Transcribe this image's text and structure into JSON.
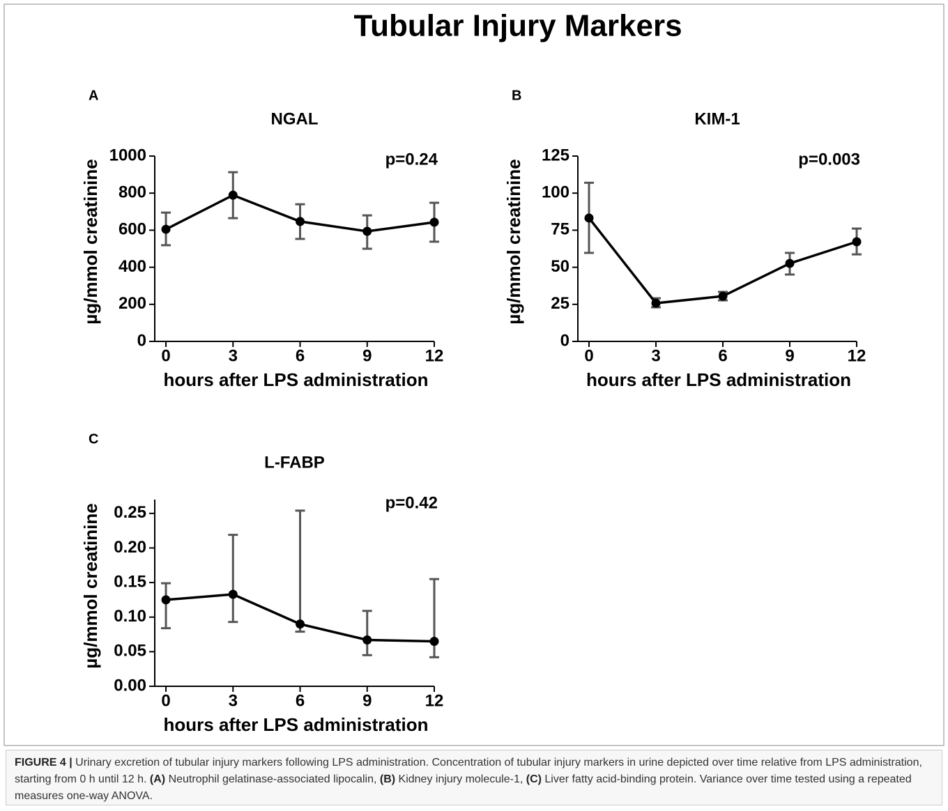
{
  "title": "Tubular Injury Markers",
  "chart_data": [
    {
      "type": "line",
      "panel": "A",
      "title": "NGAL",
      "annotation": "p=0.24",
      "xlabel": "hours after LPS administration",
      "ylabel": "µg/mmol creatinine",
      "x": [
        0,
        3,
        6,
        9,
        12
      ],
      "values": [
        605,
        789,
        647,
        594,
        643
      ],
      "error_low": [
        519,
        665,
        553,
        500,
        538
      ],
      "error_high": [
        695,
        913,
        740,
        680,
        748
      ],
      "color": "#000000",
      "error_color": "#555555",
      "xlim": [
        -0.5,
        12
      ],
      "xticks": [
        0,
        3,
        6,
        9,
        12
      ],
      "ylim": [
        0,
        1000
      ],
      "yticks": [
        0,
        200,
        400,
        600,
        800,
        1000
      ]
    },
    {
      "type": "line",
      "panel": "B",
      "title": "KIM-1",
      "annotation": "p=0.003",
      "xlabel": "hours after LPS administration",
      "ylabel": "µg/mmol creatinine",
      "x": [
        0,
        3,
        6,
        9,
        12
      ],
      "values": [
        83.2,
        25.8,
        30.5,
        52.6,
        67.2
      ],
      "error_low": [
        59.7,
        23.0,
        27.7,
        45.1,
        58.7
      ],
      "error_high": [
        107,
        29.1,
        33.4,
        59.7,
        76.1
      ],
      "color": "#000000",
      "error_color": "#555555",
      "xlim": [
        -0.5,
        12
      ],
      "xticks": [
        0,
        3,
        6,
        9,
        12
      ],
      "ylim": [
        0,
        125
      ],
      "yticks": [
        0,
        25,
        50,
        75,
        100,
        125
      ]
    },
    {
      "type": "line",
      "panel": "C",
      "title": "L-FABP",
      "annotation": "p=0.42",
      "xlabel": "hours after LPS administration",
      "ylabel": "µg/mmol creatinine",
      "x": [
        0,
        3,
        6,
        9,
        12
      ],
      "values": [
        0.125,
        0.133,
        0.09,
        0.067,
        0.065
      ],
      "error_low": [
        0.084,
        0.093,
        0.079,
        0.045,
        0.042
      ],
      "error_high": [
        0.149,
        0.219,
        0.254,
        0.109,
        0.155
      ],
      "color": "#000000",
      "error_color": "#555555",
      "xlim": [
        -0.5,
        12
      ],
      "xticks": [
        0,
        3,
        6,
        9,
        12
      ],
      "ylim": [
        0,
        0.27
      ],
      "yticks": [
        {
          "value": 0,
          "label": "0.00"
        },
        0.05,
        {
          "value": 0.1,
          "label": "0.10"
        },
        0.15,
        {
          "value": 0.2,
          "label": "0.20"
        },
        0.25
      ]
    }
  ],
  "caption": {
    "label": "FIGURE 4 |",
    "text": "Urinary excretion of tubular injury markers following LPS administration. Concentration of tubular injury markers in urine depicted over time relative from LPS administration, starting from 0 h until 12 h.",
    "items": [
      {
        "key": "(A)",
        "text": "Neutrophil gelatinase-associated lipocalin,"
      },
      {
        "key": "(B)",
        "text": "Kidney injury molecule-1,"
      },
      {
        "key": "(C)",
        "text": "Liver fatty acid-binding protein."
      }
    ],
    "note": "Variance over time tested using a repeated measures one-way ANOVA."
  }
}
